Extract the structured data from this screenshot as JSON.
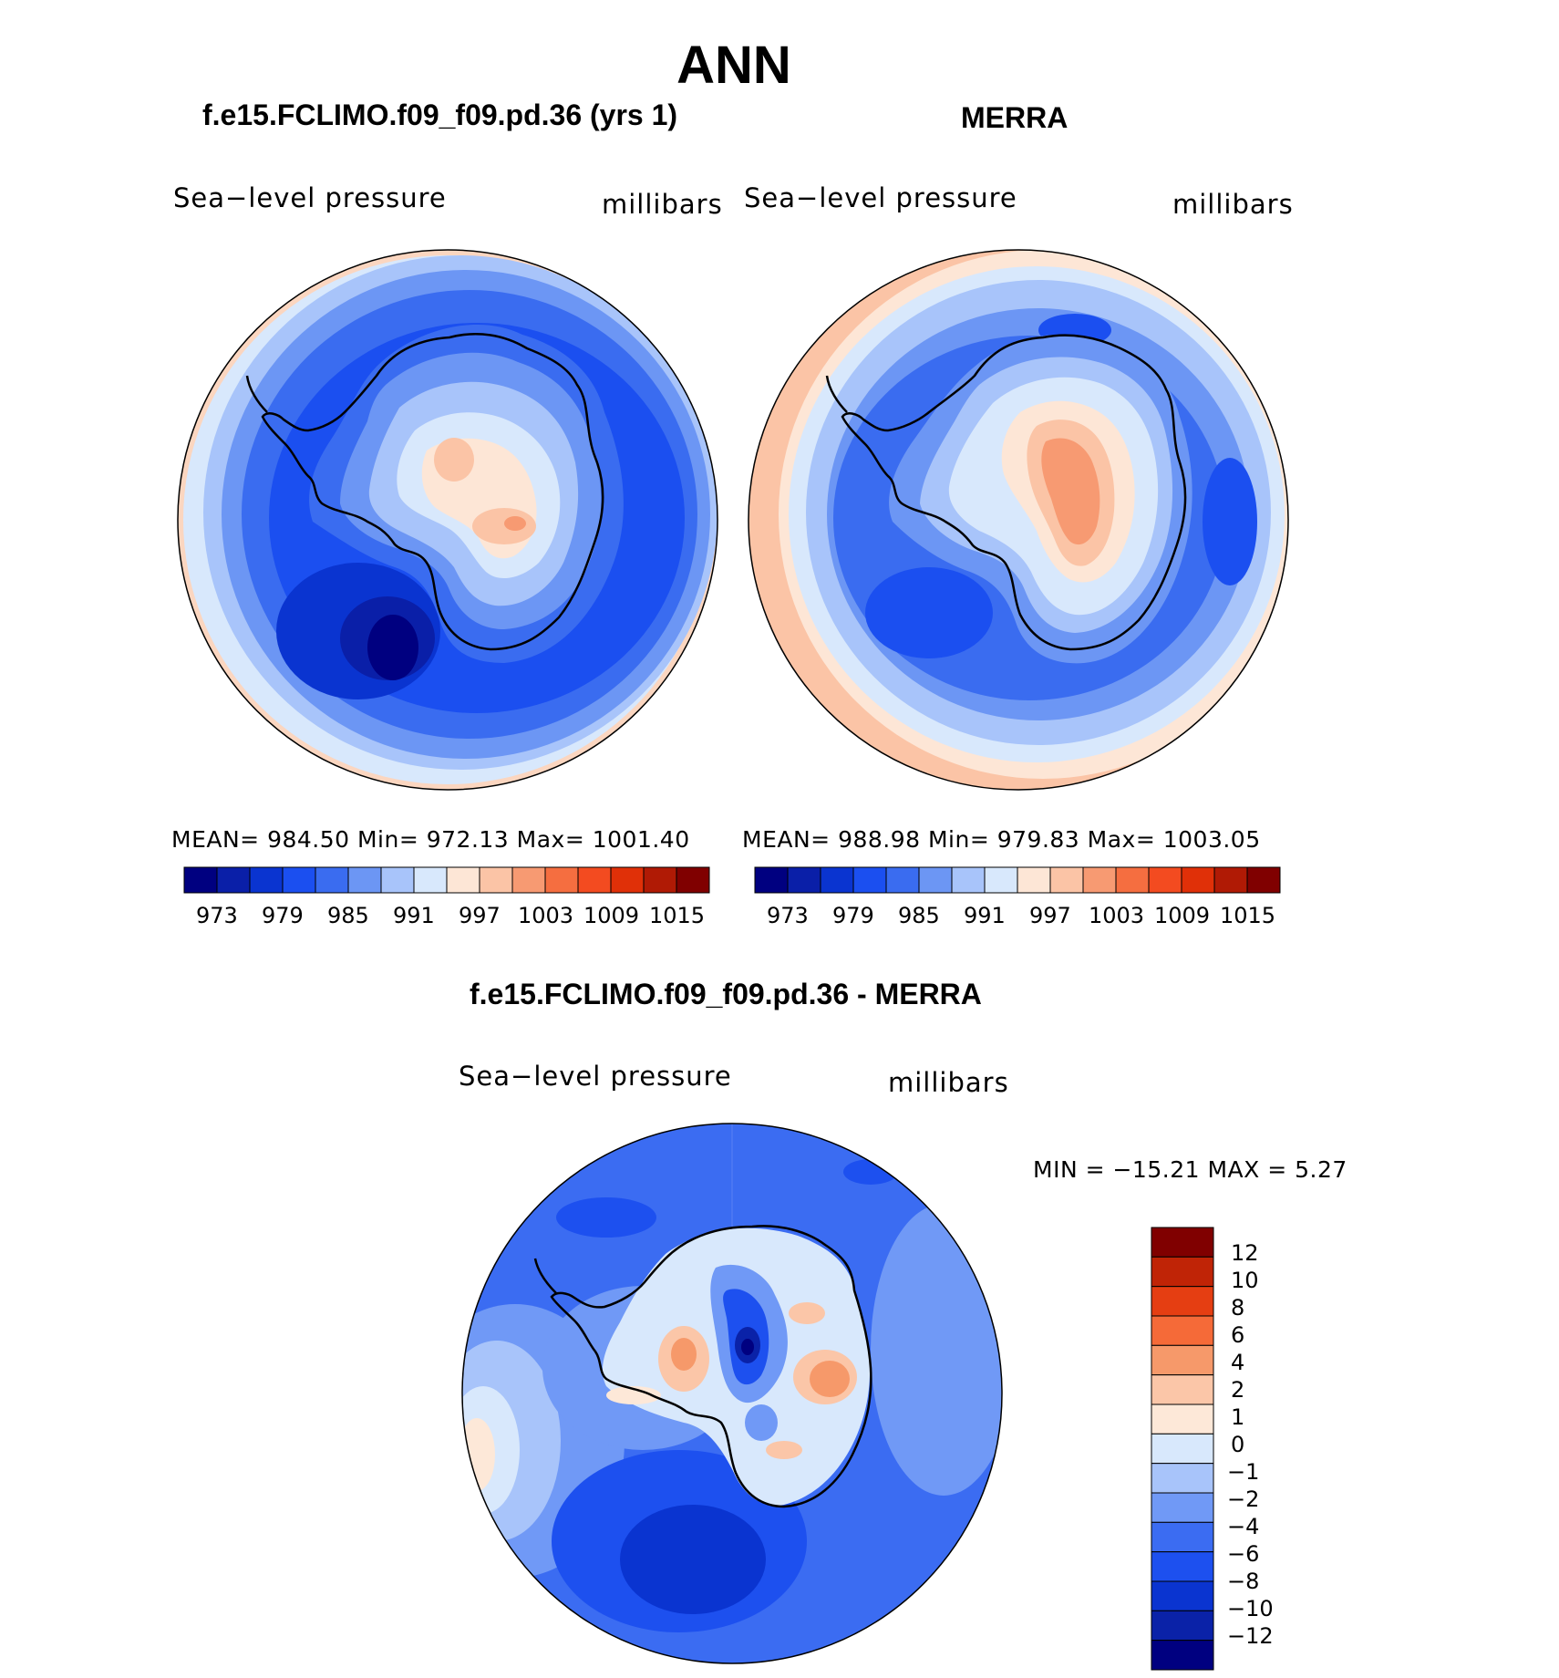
{
  "title": "ANN",
  "colors": {
    "seq": [
      "#000080",
      "#0a1fa8",
      "#0a34d0",
      "#1b4ff0",
      "#3a6cf0",
      "#6c96f4",
      "#a8c4fa",
      "#d8e8fc",
      "#fde6d6",
      "#fbc4a6",
      "#f79a72",
      "#f56e40",
      "#f34b20",
      "#e03008",
      "#b01a05",
      "#800000"
    ],
    "diff": [
      "#000080",
      "#0a22a8",
      "#0a34d0",
      "#1d50ef",
      "#3b6cf2",
      "#7099f6",
      "#a8c4fa",
      "#d8e8fc",
      "#fde8d8",
      "#fbc6a8",
      "#f6996a",
      "#f56a38",
      "#e53e12",
      "#c02406",
      "#800000"
    ]
  },
  "panels": {
    "model": {
      "title": "f.e15.FCLIMO.f09_f09.pd.36 (yrs 1)",
      "variable": "Sea−level pressure",
      "units": "millibars",
      "stats_text": "MEAN=  984.50    Min=  972.13    Max=  1001.40",
      "ticks": [
        "973",
        "979",
        "985",
        "991",
        "997",
        "1003",
        "1009",
        "1015"
      ]
    },
    "obs": {
      "title": "MERRA",
      "variable": "Sea−level pressure",
      "units": "millibars",
      "stats_text": "MEAN=  988.98    Min=  979.83    Max=  1003.05",
      "ticks": [
        "973",
        "979",
        "985",
        "991",
        "997",
        "1003",
        "1009",
        "1015"
      ]
    },
    "diff": {
      "title": "f.e15.FCLIMO.f09_f09.pd.36 - MERRA",
      "variable": "Sea−level pressure",
      "units": "millibars",
      "minmax_text": "MIN  =  −15.21  MAX  =       5.27",
      "ticks": [
        "12",
        "10",
        "8",
        "6",
        "4",
        "2",
        "1",
        "0",
        "−1",
        "−2",
        "−4",
        "−6",
        "−8",
        "−10",
        "−12"
      ]
    }
  }
}
